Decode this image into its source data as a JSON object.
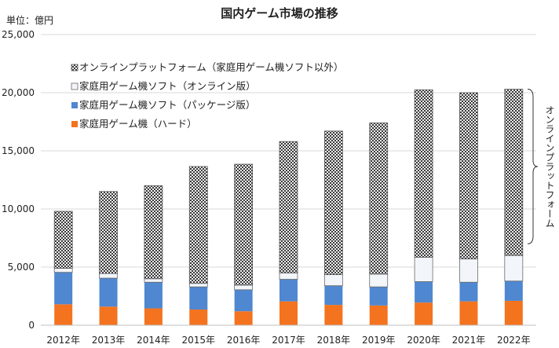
{
  "chart_data": {
    "type": "bar",
    "stacked": true,
    "title": "国内ゲーム市場の推移",
    "unit_label": "単位：億円",
    "ylim": [
      0,
      25000
    ],
    "yticks": [
      0,
      5000,
      10000,
      15000,
      20000,
      25000
    ],
    "ytick_labels": [
      "0",
      "5,000",
      "10,000",
      "15,000",
      "20,000",
      "25,000"
    ],
    "grid": true,
    "categories": [
      "2012年",
      "2013年",
      "2014年",
      "2015年",
      "2016年",
      "2017年",
      "2018年",
      "2019年",
      "2020年",
      "2021年",
      "2022年"
    ],
    "series": [
      {
        "name": "家庭用ゲーム機（ハード）",
        "color": "#F4731F",
        "pattern": "solid",
        "values": [
          1800,
          1600,
          1450,
          1350,
          1200,
          2050,
          1750,
          1700,
          1950,
          2050,
          2100
        ]
      },
      {
        "name": "家庭用ゲーム機ソフト（パッケージ版）",
        "color": "#4F87D0",
        "pattern": "solid",
        "values": [
          2750,
          2450,
          2250,
          1950,
          1850,
          1900,
          1650,
          1600,
          1800,
          1650,
          1700
        ]
      },
      {
        "name": "家庭用ゲーム機ソフト（オンライン版）",
        "color": "#F2F5FA",
        "pattern": "light",
        "values": [
          350,
          400,
          300,
          300,
          400,
          550,
          950,
          1100,
          2100,
          2000,
          2200
        ]
      },
      {
        "name": "オンラインプラットフォーム（家庭用ゲーム機ソフト以外）",
        "color": "#808080",
        "pattern": "checker",
        "values": [
          4900,
          7050,
          8000,
          10050,
          10400,
          11300,
          12350,
          13000,
          14400,
          14300,
          14300
        ]
      }
    ],
    "legend_order": [
      3,
      2,
      1,
      0
    ],
    "legend_position": "top-left",
    "annotation": {
      "text": "オンラインプラットフォーム",
      "spans_series": "オンラインプラットフォーム（家庭用ゲーム機ソフト以外）",
      "placement": "right"
    }
  }
}
